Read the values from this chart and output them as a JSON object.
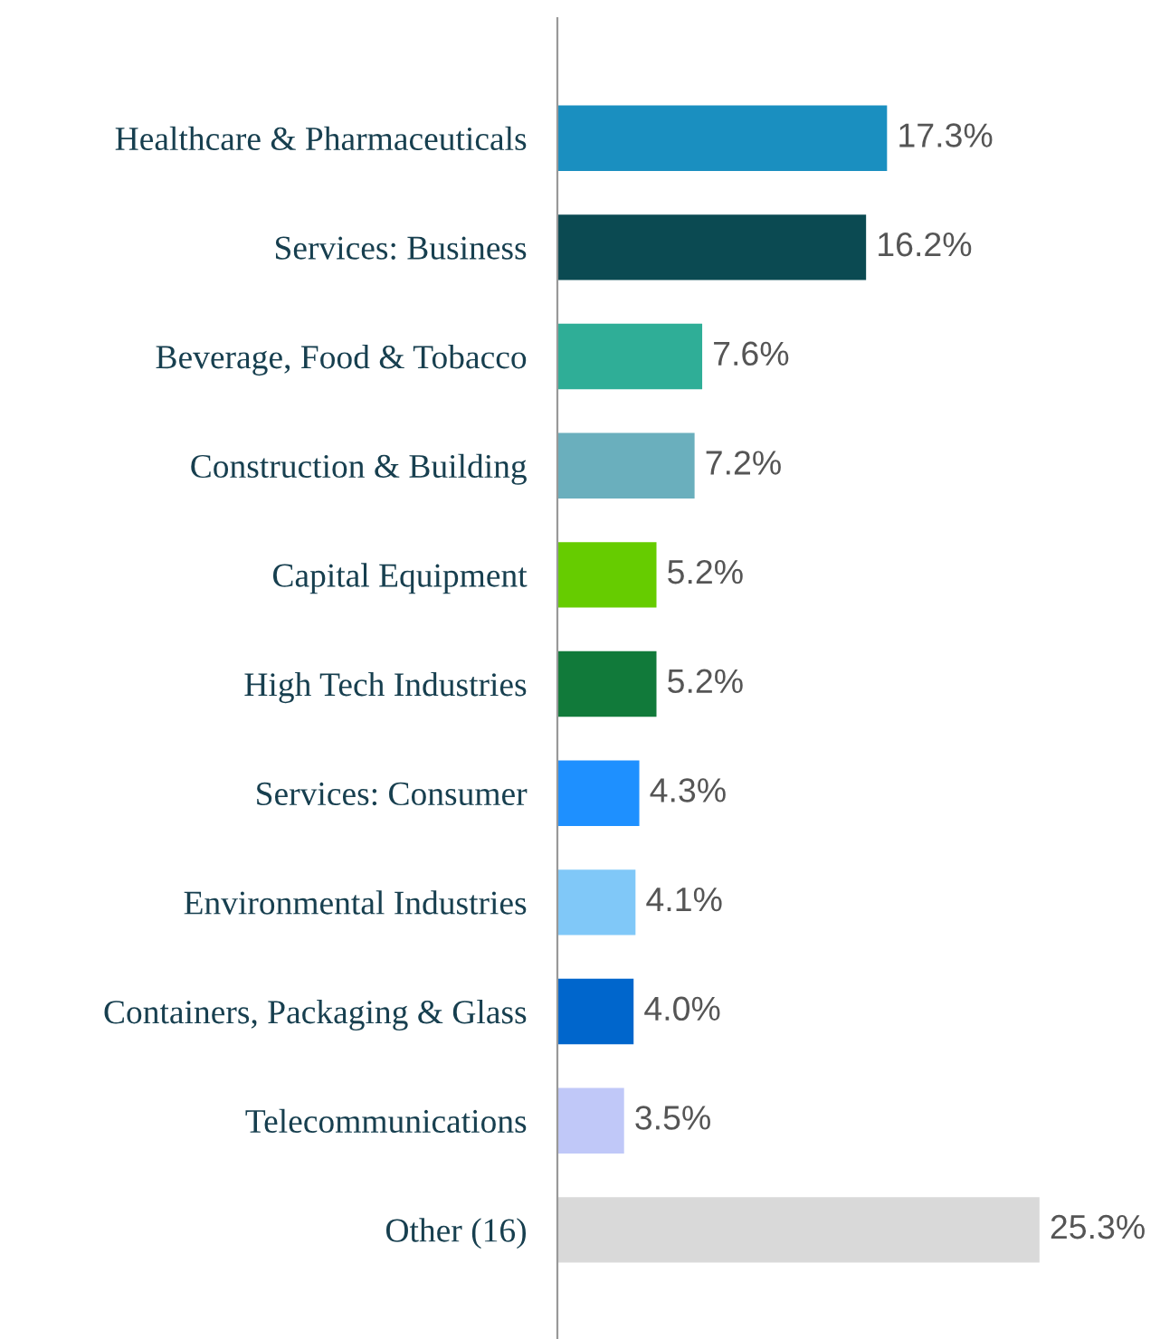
{
  "chart_data": {
    "type": "bar",
    "orientation": "horizontal",
    "data_labels": true,
    "categories": [
      "Healthcare & Pharmaceuticals",
      "Services: Business",
      "Beverage, Food & Tobacco",
      "Construction & Building",
      "Capital Equipment",
      "High Tech Industries",
      "Services: Consumer",
      "Environmental Industries",
      "Containers, Packaging & Glass",
      "Telecommunications",
      "Other (16)"
    ],
    "values": [
      17.3,
      16.2,
      7.6,
      7.2,
      5.2,
      5.2,
      4.3,
      4.1,
      4.0,
      3.5,
      25.3
    ],
    "value_labels": [
      "17.3%",
      "16.2%",
      "7.6%",
      "7.2%",
      "5.2%",
      "5.2%",
      "4.3%",
      "4.1%",
      "4.0%",
      "3.5%",
      "25.3%"
    ],
    "colors": [
      "#1a8fc0",
      "#0b4a52",
      "#2fae97",
      "#6aafbd",
      "#66cc00",
      "#117a3a",
      "#1e90ff",
      "#80c8f8",
      "#0066cc",
      "#c0c8f8",
      "#d9d9d9"
    ],
    "grid": false,
    "legend": false
  }
}
